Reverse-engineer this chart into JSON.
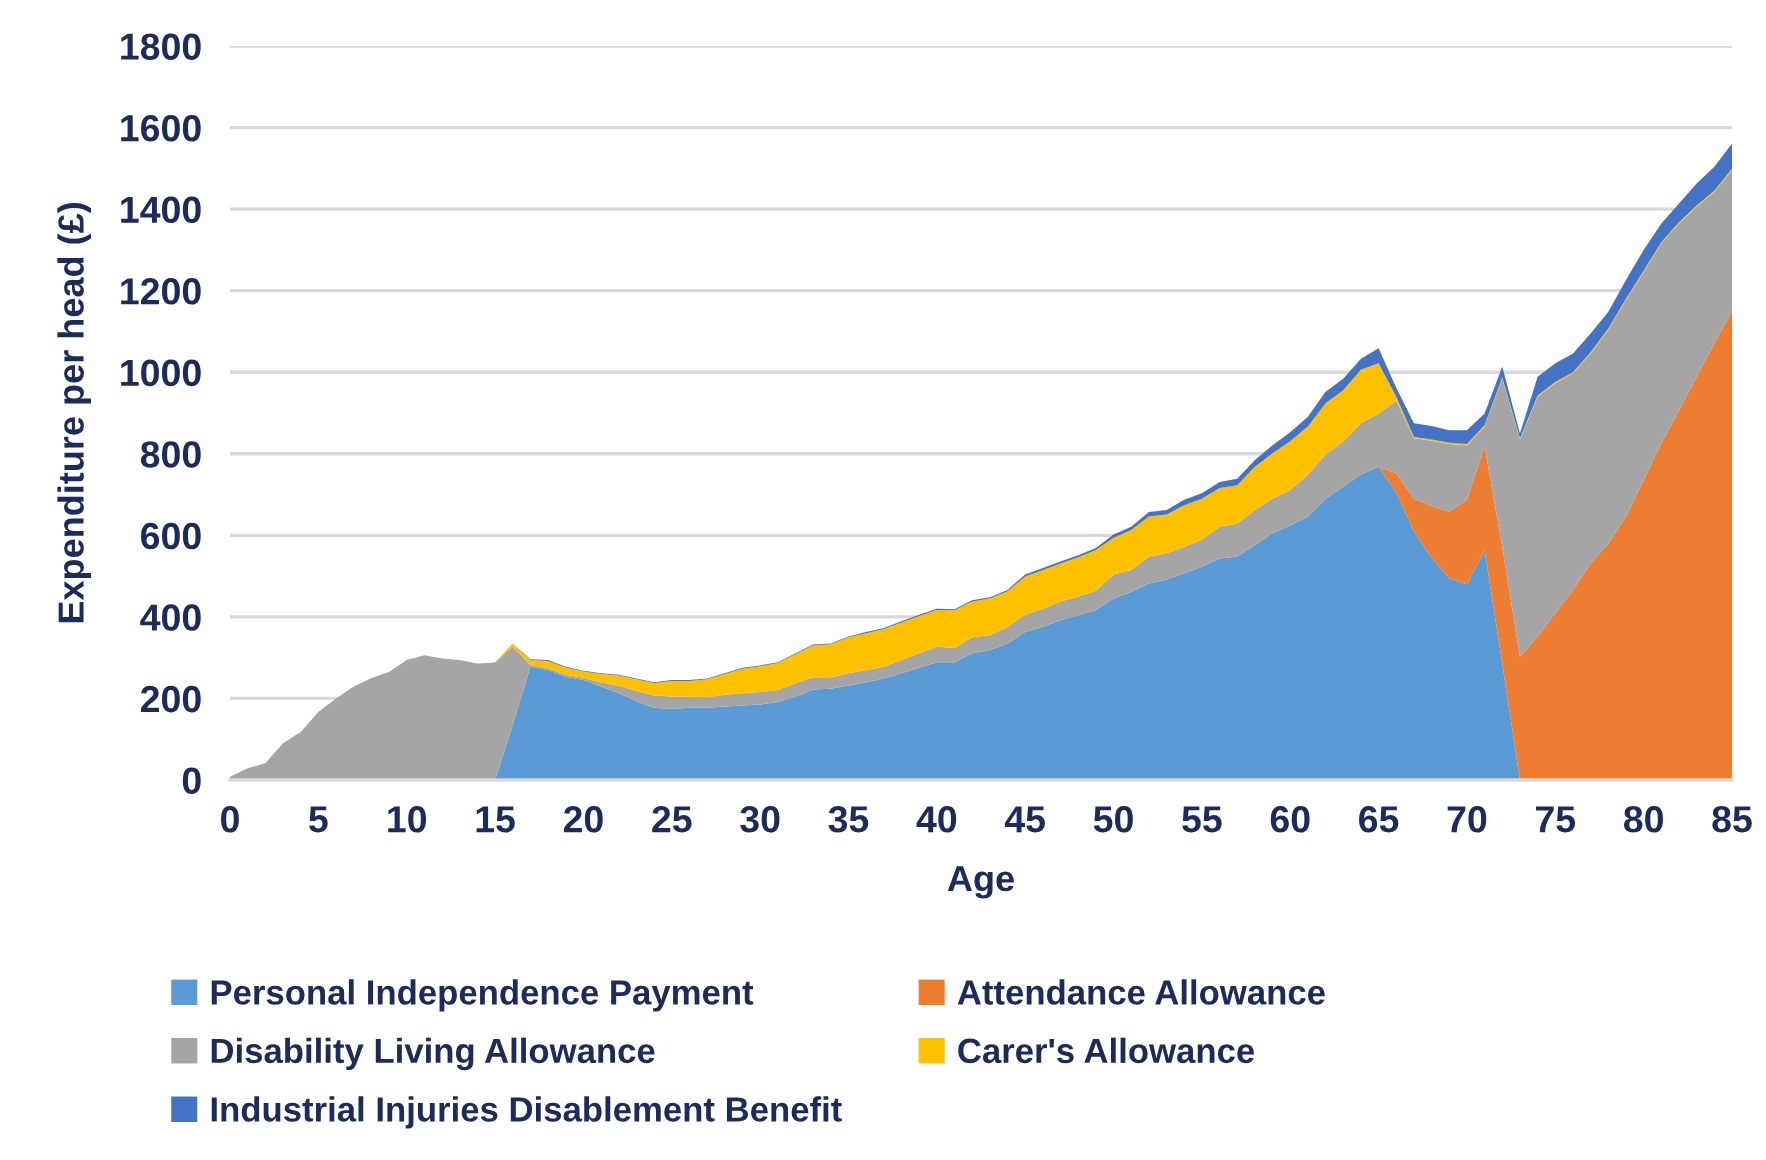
{
  "chart_data": {
    "type": "area",
    "stacked": true,
    "xlabel": "Age",
    "ylabel": "Expenditure per head (£)",
    "x": [
      0,
      1,
      2,
      3,
      4,
      5,
      6,
      7,
      8,
      9,
      10,
      11,
      12,
      13,
      14,
      15,
      16,
      17,
      18,
      19,
      20,
      21,
      22,
      23,
      24,
      25,
      26,
      27,
      28,
      29,
      30,
      31,
      32,
      33,
      34,
      35,
      36,
      37,
      38,
      39,
      40,
      41,
      42,
      43,
      44,
      45,
      46,
      47,
      48,
      49,
      50,
      51,
      52,
      53,
      54,
      55,
      56,
      57,
      58,
      59,
      60,
      61,
      62,
      63,
      64,
      65,
      66,
      67,
      68,
      69,
      70,
      71,
      72,
      73,
      74,
      75,
      76,
      77,
      78,
      79,
      80,
      81,
      82,
      83,
      84,
      85
    ],
    "xlim": [
      0,
      85
    ],
    "xticks": [
      0,
      5,
      10,
      15,
      20,
      25,
      30,
      35,
      40,
      45,
      50,
      55,
      60,
      65,
      70,
      75,
      80,
      85
    ],
    "ylim": [
      0,
      1800
    ],
    "yticks": [
      0,
      200,
      400,
      600,
      800,
      1000,
      1200,
      1400,
      1600,
      1800
    ],
    "grid": "y",
    "legend": "bottom",
    "series": [
      {
        "name": "Personal Independence Payment",
        "color": "#5b9bd5",
        "values": [
          0,
          0,
          0,
          0,
          0,
          0,
          0,
          0,
          0,
          0,
          0,
          0,
          0,
          0,
          0,
          0,
          135,
          278,
          270,
          253,
          245,
          229,
          213,
          193,
          177,
          175,
          177,
          177,
          180,
          183,
          185,
          191,
          204,
          222,
          224,
          232,
          240,
          249,
          262,
          275,
          289,
          289,
          311,
          319,
          335,
          363,
          376,
          392,
          404,
          417,
          445,
          461,
          482,
          491,
          507,
          523,
          543,
          548,
          576,
          605,
          625,
          646,
          690,
          719,
          749,
          768,
          705,
          610,
          545,
          495,
          480,
          564,
          285,
          0,
          0,
          0,
          0,
          0,
          0,
          0,
          0,
          0,
          0,
          0,
          0,
          0
        ]
      },
      {
        "name": "Attendance Allowance",
        "color": "#ed7d31",
        "values": [
          0,
          0,
          0,
          0,
          0,
          0,
          0,
          0,
          0,
          0,
          0,
          0,
          0,
          0,
          0,
          0,
          0,
          0,
          0,
          0,
          0,
          0,
          0,
          0,
          0,
          0,
          0,
          0,
          0,
          0,
          0,
          0,
          0,
          0,
          0,
          0,
          0,
          0,
          0,
          0,
          0,
          0,
          0,
          0,
          0,
          0,
          0,
          0,
          0,
          0,
          0,
          0,
          0,
          0,
          0,
          0,
          0,
          0,
          0,
          0,
          0,
          0,
          0,
          0,
          0,
          0,
          47,
          80,
          127,
          163,
          207,
          254,
          287,
          302,
          352,
          409,
          466,
          531,
          580,
          646,
          736,
          826,
          907,
          989,
          1071,
          1150
        ]
      },
      {
        "name": "Disability Living Allowance",
        "color": "#a5a5a5",
        "values": [
          8,
          29,
          41,
          90,
          118,
          167,
          200,
          229,
          250,
          265,
          294,
          306,
          298,
          294,
          286,
          288,
          192,
          4,
          4,
          5,
          6,
          10,
          18,
          25,
          30,
          30,
          27,
          26,
          29,
          30,
          31,
          30,
          33,
          30,
          28,
          30,
          30,
          29,
          32,
          36,
          38,
          35,
          39,
          36,
          41,
          42,
          44,
          46,
          46,
          47,
          59,
          54,
          66,
          65,
          65,
          66,
          78,
          81,
          86,
          85,
          86,
          103,
          108,
          112,
          126,
          131,
          178,
          148,
          160,
          166,
          134,
          49,
          412,
          533,
          588,
          564,
          531,
          515,
          524,
          531,
          510,
          490,
          458,
          417,
          371,
          346
        ]
      },
      {
        "name": "Carer's Allowance",
        "color": "#ffc000",
        "values": [
          0,
          0,
          0,
          0,
          0,
          0,
          0,
          0,
          0,
          0,
          0,
          0,
          0,
          0,
          0,
          0,
          8,
          12,
          18,
          18,
          15,
          21,
          25,
          29,
          31,
          38,
          39,
          44,
          51,
          60,
          63,
          66,
          72,
          78,
          81,
          88,
          90,
          92,
          92,
          91,
          90,
          92,
          88,
          90,
          87,
          94,
          95,
          93,
          96,
          100,
          90,
          98,
          98,
          95,
          102,
          101,
          95,
          94,
          106,
          111,
          120,
          118,
          126,
          125,
          131,
          123,
          10,
          3,
          3,
          3,
          3,
          3,
          3,
          3,
          3,
          3,
          3,
          3,
          3,
          3,
          3,
          3,
          3,
          3,
          3,
          3
        ]
      },
      {
        "name": "Industrial Injuries Disablement Benefit",
        "color": "#4472c4",
        "values": [
          0,
          0,
          0,
          0,
          0,
          0,
          0,
          0,
          0,
          0,
          0,
          0,
          0,
          0,
          0,
          0,
          0,
          2,
          2,
          2,
          2,
          2,
          2,
          2,
          2,
          2,
          2,
          2,
          2,
          2,
          2,
          2,
          2,
          2,
          2,
          2,
          3,
          3,
          3,
          3,
          3,
          3,
          3,
          3,
          3,
          5,
          5,
          5,
          5,
          5,
          8,
          8,
          11,
          11,
          13,
          13,
          15,
          16,
          17,
          20,
          22,
          24,
          28,
          28,
          27,
          37,
          22,
          34,
          33,
          31,
          34,
          29,
          27,
          12,
          46,
          46,
          46,
          46,
          41,
          46,
          51,
          46,
          46,
          54,
          59,
          62
        ]
      }
    ]
  }
}
